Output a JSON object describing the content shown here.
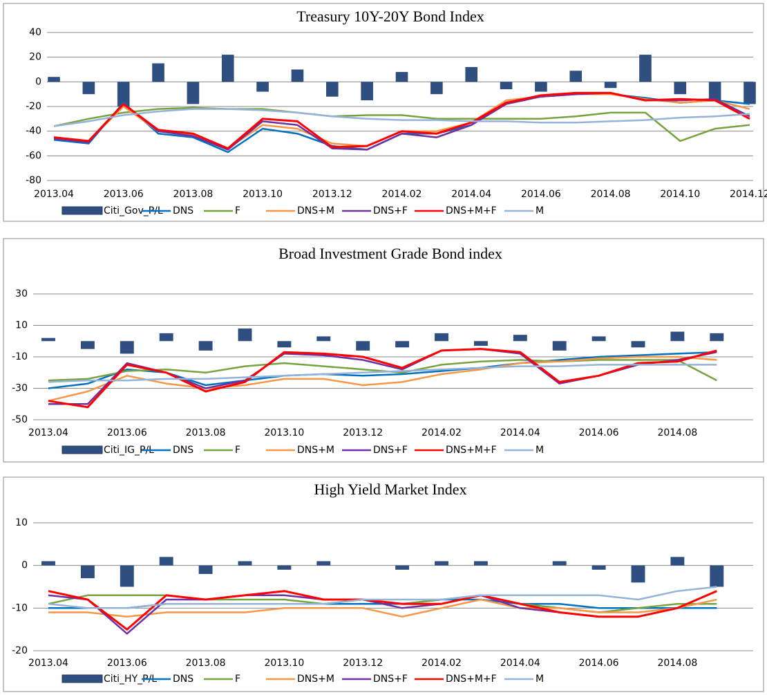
{
  "chart_data": [
    {
      "type": "combo",
      "title": "Treasury 10Y-20Y Bond Index",
      "x": [
        "2013.04",
        "2013.05",
        "2013.06",
        "2013.07",
        "2013.08",
        "2013.09",
        "2013.10",
        "2013.11",
        "2013.12",
        "2014.01",
        "2014.02",
        "2014.03",
        "2014.04",
        "2014.05",
        "2014.06",
        "2014.07",
        "2014.08",
        "2014.09",
        "2014.10",
        "2014.11",
        "2014.12"
      ],
      "xticks": [
        "2013.04",
        "2013.06",
        "2013.08",
        "2013.10",
        "2013.12",
        "2014.02",
        "2014.04",
        "2014.06",
        "2014.08",
        "2014.10",
        "2014.12"
      ],
      "ylim": [
        -80,
        40
      ],
      "yticks": [
        -80,
        -60,
        -40,
        -20,
        0,
        20,
        40
      ],
      "grid": true,
      "series": [
        {
          "name": "Citi_Gov_P/L",
          "type": "bar",
          "color": "#2f4f80",
          "values": [
            4,
            -10,
            -20,
            15,
            -18,
            22,
            -8,
            10,
            -12,
            -15,
            8,
            -10,
            12,
            -6,
            -8,
            9,
            -5,
            22,
            -10,
            -15,
            -18
          ]
        },
        {
          "name": "DNS",
          "type": "line",
          "color": "#0070c0",
          "values": [
            -47,
            -50,
            -17,
            -42,
            -45,
            -57,
            -38,
            -42,
            -52,
            -55,
            -42,
            -42,
            -35,
            -15,
            -12,
            -10,
            -10,
            -13,
            -17,
            -15,
            -18
          ]
        },
        {
          "name": "F",
          "type": "line",
          "color": "#77a33f",
          "values": [
            -36,
            -30,
            -25,
            -22,
            -21,
            -22,
            -22,
            -25,
            -28,
            -27,
            -27,
            -30,
            -30,
            -30,
            -30,
            -28,
            -25,
            -25,
            -48,
            -38,
            -35
          ]
        },
        {
          "name": "DNS+M",
          "type": "line",
          "color": "#f79646",
          "values": [
            -45,
            -48,
            -20,
            -40,
            -43,
            -54,
            -35,
            -38,
            -50,
            -52,
            -40,
            -40,
            -33,
            -15,
            -12,
            -10,
            -10,
            -14,
            -17,
            -15,
            -22
          ]
        },
        {
          "name": "DNS+F",
          "type": "line",
          "color": "#7030a0",
          "values": [
            -46,
            -49,
            -18,
            -40,
            -44,
            -55,
            -32,
            -35,
            -54,
            -55,
            -42,
            -45,
            -35,
            -18,
            -12,
            -10,
            -9,
            -15,
            -15,
            -14,
            -28
          ]
        },
        {
          "name": "DNS+M+F",
          "type": "line",
          "color": "#ff0000",
          "values": [
            -45,
            -48,
            -18,
            -39,
            -42,
            -54,
            -30,
            -32,
            -53,
            -52,
            -40,
            -42,
            -33,
            -17,
            -11,
            -9,
            -9,
            -15,
            -14,
            -15,
            -30
          ]
        },
        {
          "name": "M",
          "type": "line",
          "color": "#95b3d7",
          "values": [
            -36,
            -32,
            -27,
            -24,
            -22,
            -22,
            -23,
            -25,
            -28,
            -30,
            -31,
            -31,
            -32,
            -32,
            -33,
            -33,
            -32,
            -31,
            -29,
            -28,
            -26
          ]
        }
      ]
    },
    {
      "type": "combo",
      "title": "Broad Investment Grade Bond index",
      "x": [
        "2013.04",
        "2013.05",
        "2013.06",
        "2013.07",
        "2013.08",
        "2013.09",
        "2013.10",
        "2013.11",
        "2013.12",
        "2014.01",
        "2014.02",
        "2014.03",
        "2014.04",
        "2014.05",
        "2014.06",
        "2014.07",
        "2014.08",
        "2014.09"
      ],
      "xticks": [
        "2013.04",
        "2013.06",
        "2013.08",
        "2013.10",
        "2013.12",
        "2014.02",
        "2014.04",
        "2014.06",
        "2014.08"
      ],
      "ylim": [
        -50,
        30
      ],
      "yticks": [
        -50,
        -30,
        -10,
        10,
        30
      ],
      "grid": true,
      "series": [
        {
          "name": "Citi_IG_P/L",
          "type": "bar",
          "color": "#2f4f80",
          "values": [
            2,
            -5,
            -8,
            5,
            -6,
            8,
            -4,
            3,
            -6,
            -4,
            5,
            -3,
            4,
            -6,
            3,
            -4,
            6,
            5
          ]
        },
        {
          "name": "DNS",
          "type": "line",
          "color": "#0070c0",
          "values": [
            -30,
            -27,
            -18,
            -20,
            -28,
            -25,
            -22,
            -21,
            -22,
            -21,
            -19,
            -17,
            -14,
            -12,
            -10,
            -9,
            -8,
            -7
          ]
        },
        {
          "name": "F",
          "type": "line",
          "color": "#77a33f",
          "values": [
            -25,
            -24,
            -19,
            -18,
            -20,
            -16,
            -14,
            -16,
            -18,
            -20,
            -15,
            -13,
            -12,
            -13,
            -12,
            -12,
            -12,
            -25
          ]
        },
        {
          "name": "DNS+M",
          "type": "line",
          "color": "#f79646",
          "values": [
            -38,
            -32,
            -22,
            -27,
            -30,
            -28,
            -24,
            -24,
            -28,
            -26,
            -21,
            -18,
            -14,
            -13,
            -11,
            -10,
            -10,
            -12
          ]
        },
        {
          "name": "DNS+F",
          "type": "line",
          "color": "#7030a0",
          "values": [
            -40,
            -40,
            -14,
            -20,
            -30,
            -25,
            -8,
            -9,
            -12,
            -18,
            -6,
            -5,
            -8,
            -27,
            -22,
            -15,
            -12,
            -7
          ]
        },
        {
          "name": "DNS+M+F",
          "type": "line",
          "color": "#ff0000",
          "values": [
            -38,
            -42,
            -15,
            -20,
            -32,
            -26,
            -7,
            -8,
            -10,
            -17,
            -6,
            -5,
            -7,
            -26,
            -22,
            -14,
            -13,
            -6
          ]
        },
        {
          "name": "M",
          "type": "line",
          "color": "#95b3d7",
          "values": [
            -26,
            -25,
            -25,
            -24,
            -24,
            -23,
            -22,
            -21,
            -20,
            -19,
            -18,
            -17,
            -16,
            -16,
            -15,
            -15,
            -15,
            -15
          ]
        }
      ]
    },
    {
      "type": "combo",
      "title": "High Yield Market Index",
      "x": [
        "2013.04",
        "2013.05",
        "2013.06",
        "2013.07",
        "2013.08",
        "2013.09",
        "2013.10",
        "2013.11",
        "2013.12",
        "2014.01",
        "2014.02",
        "2014.03",
        "2014.04",
        "2014.05",
        "2014.06",
        "2014.07",
        "2014.08",
        "2014.09"
      ],
      "xticks": [
        "2013.04",
        "2013.06",
        "2013.08",
        "2013.10",
        "2013.12",
        "2014.02",
        "2014.04",
        "2014.06",
        "2014.08"
      ],
      "ylim": [
        -20,
        10
      ],
      "yticks": [
        -20,
        -10,
        0,
        10
      ],
      "grid": true,
      "series": [
        {
          "name": "Citi_HY_P/L",
          "type": "bar",
          "color": "#2f4f80",
          "values": [
            1,
            -3,
            -5,
            2,
            -2,
            1,
            -1,
            1,
            0,
            -1,
            1,
            1,
            0,
            1,
            -1,
            -4,
            2,
            -5
          ]
        },
        {
          "name": "DNS",
          "type": "line",
          "color": "#0070c0",
          "values": [
            -10,
            -10,
            -10,
            -9,
            -9,
            -9,
            -9,
            -9,
            -9,
            -9,
            -8,
            -8,
            -9,
            -9,
            -10,
            -10,
            -10,
            -10
          ]
        },
        {
          "name": "F",
          "type": "line",
          "color": "#77a33f",
          "values": [
            -9,
            -7,
            -7,
            -7,
            -8,
            -8,
            -8,
            -9,
            -8,
            -9,
            -8,
            -7,
            -9,
            -10,
            -11,
            -10,
            -9,
            -9
          ]
        },
        {
          "name": "DNS+M",
          "type": "line",
          "color": "#f79646",
          "values": [
            -11,
            -11,
            -12,
            -11,
            -11,
            -11,
            -10,
            -10,
            -10,
            -12,
            -10,
            -8,
            -10,
            -10,
            -11,
            -11,
            -10,
            -8
          ]
        },
        {
          "name": "DNS+F",
          "type": "line",
          "color": "#7030a0",
          "values": [
            -7,
            -8,
            -16,
            -8,
            -8,
            -7,
            -7,
            -8,
            -8,
            -10,
            -9,
            -7,
            -10,
            -11,
            -12,
            -12,
            -10,
            -6
          ]
        },
        {
          "name": "DNS+M+F",
          "type": "line",
          "color": "#ff0000",
          "values": [
            -6,
            -8,
            -15,
            -7,
            -8,
            -7,
            -6,
            -8,
            -8,
            -9,
            -9,
            -7,
            -9,
            -11,
            -12,
            -12,
            -10,
            -6
          ]
        },
        {
          "name": "M",
          "type": "line",
          "color": "#95b3d7",
          "values": [
            -9,
            -10,
            -10,
            -9,
            -9,
            -9,
            -9,
            -9,
            -8,
            -8,
            -8,
            -7,
            -7,
            -7,
            -7,
            -8,
            -6,
            -5
          ]
        }
      ]
    }
  ]
}
